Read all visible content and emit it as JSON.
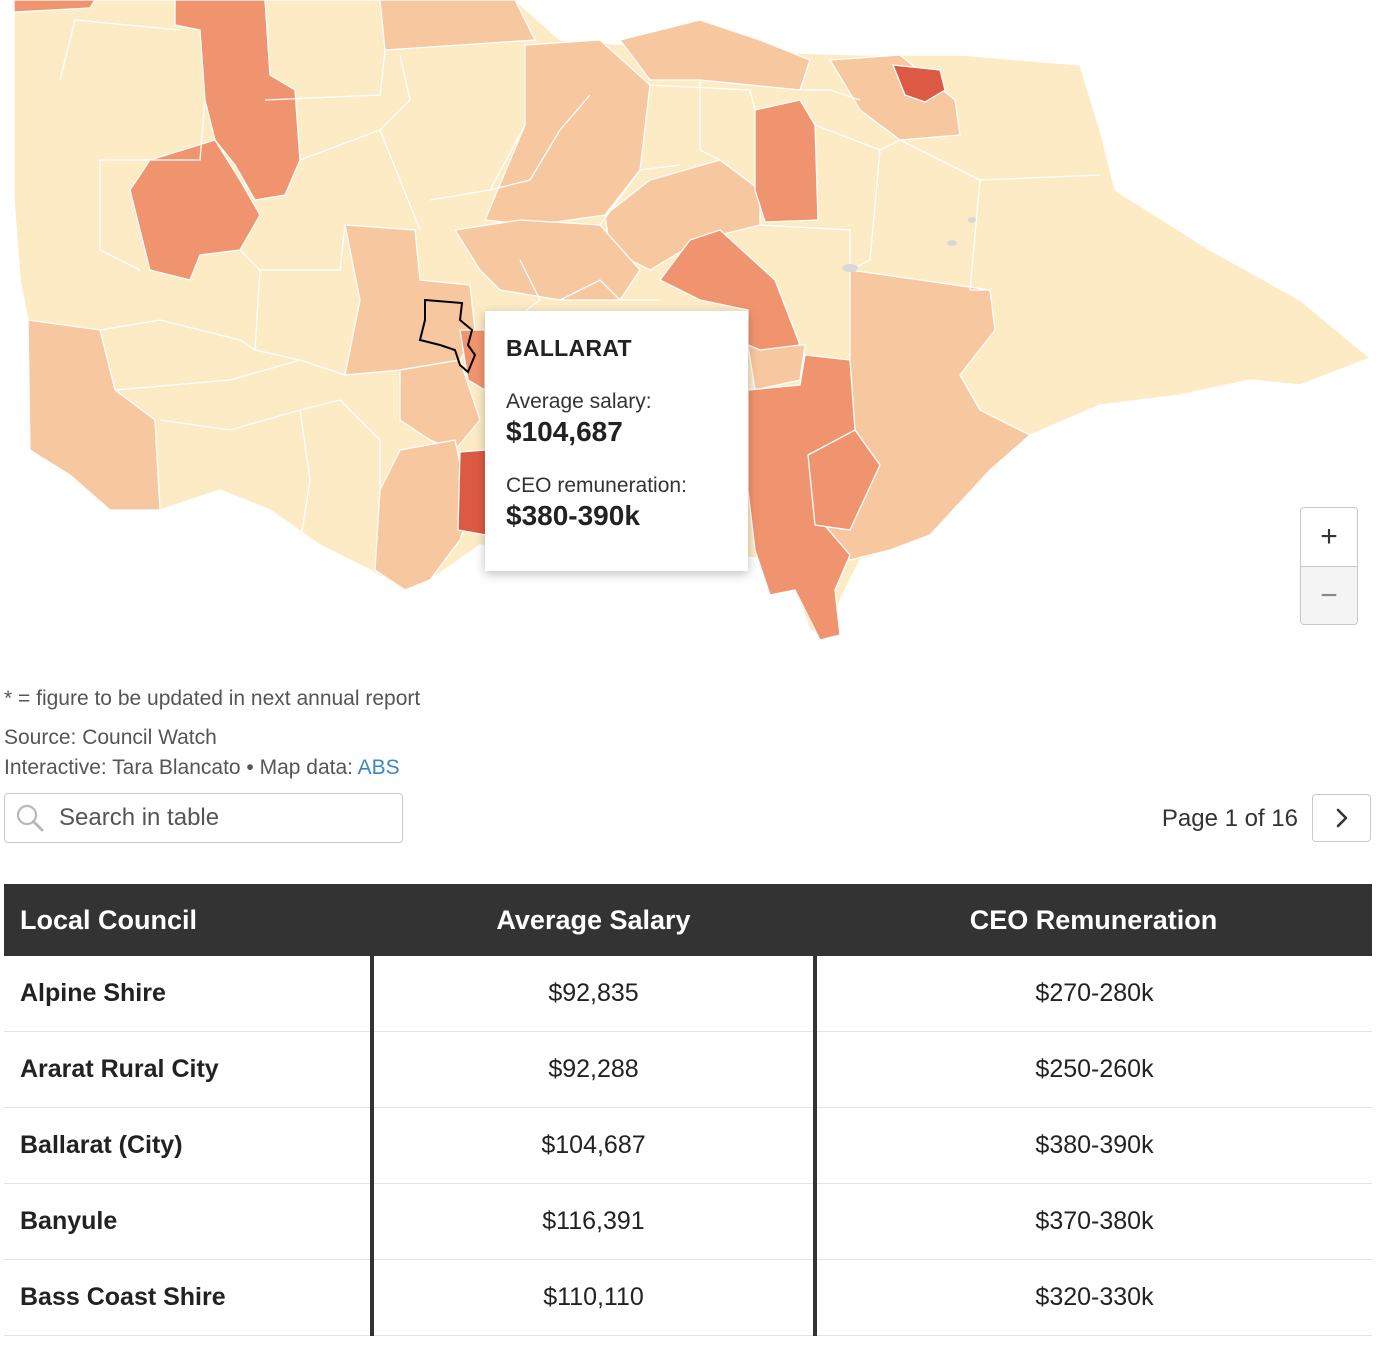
{
  "map": {
    "colors": {
      "level1": "#fdebc6",
      "level2": "#f7c7a0",
      "level3": "#f0946f",
      "level4": "#dc5a44",
      "border": "#ffffff",
      "highlight": "#000000"
    },
    "tooltip": {
      "title": "BALLARAT",
      "salary_label": "Average salary:",
      "salary_value": "$104,687",
      "ceo_label": "CEO remuneration:",
      "ceo_value": "$380-390k"
    },
    "zoom": {
      "in_label": "+",
      "out_label": "−"
    }
  },
  "notes": {
    "footnote": "* = figure to be updated in next annual report",
    "source": "Source: Council Watch",
    "credit": "Interactive: Tara Blancato • Map data: ",
    "credit_link": "ABS"
  },
  "search": {
    "placeholder": "Search in table",
    "value": "",
    "icon": "search-icon"
  },
  "pagination": {
    "label": "Page 1 of 16",
    "next_icon": "chevron-right-icon"
  },
  "table": {
    "headers": [
      "Local Council",
      "Average Salary",
      "CEO Remuneration"
    ],
    "rows": [
      [
        "Alpine Shire",
        "$92,835",
        "$270-280k"
      ],
      [
        "Ararat Rural City",
        "$92,288",
        "$250-260k"
      ],
      [
        "Ballarat (City)",
        "$104,687",
        "$380-390k"
      ],
      [
        "Banyule",
        "$116,391",
        "$370-380k"
      ],
      [
        "Bass Coast Shire",
        "$110,110",
        "$320-330k"
      ]
    ]
  }
}
